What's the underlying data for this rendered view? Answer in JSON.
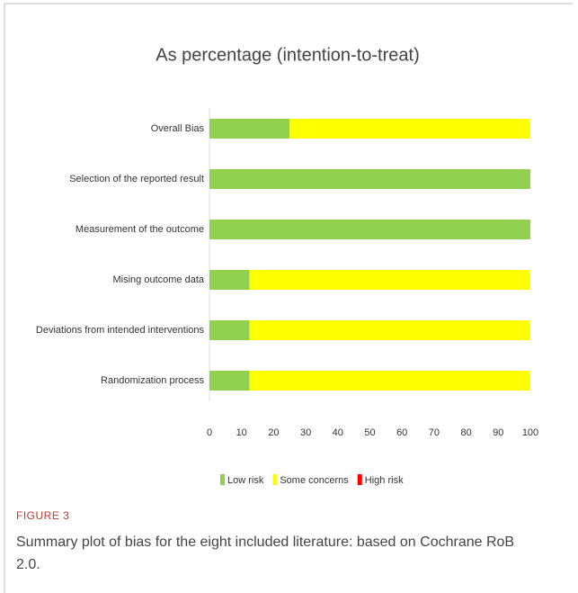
{
  "chart_data": {
    "type": "stacked_barh",
    "title": "As percentage (intention-to-treat)",
    "categories": [
      "Overall Bias",
      "Selection of the reported result",
      "Measurement of the outcome",
      "Mising outcome data",
      "Deviations from intended interventions",
      "Randomization process"
    ],
    "series": [
      {
        "name": "Low risk",
        "color": "#92d050",
        "values": [
          25,
          100,
          100,
          12.5,
          12.5,
          12.5
        ]
      },
      {
        "name": "Some concerns",
        "color": "#ffff00",
        "values": [
          75,
          0,
          0,
          87.5,
          87.5,
          87.5
        ]
      },
      {
        "name": "High risk",
        "color": "#ff0000",
        "values": [
          0,
          0,
          0,
          0,
          0,
          0
        ]
      }
    ],
    "xlim": [
      0,
      100
    ],
    "xticks": [
      0,
      10,
      20,
      30,
      40,
      50,
      60,
      70,
      80,
      90,
      100
    ],
    "legend": "bottom"
  },
  "figure_label": "FIGURE 3",
  "caption": "Summary plot of bias for the eight included literature: based on Cochrane RoB 2.0."
}
